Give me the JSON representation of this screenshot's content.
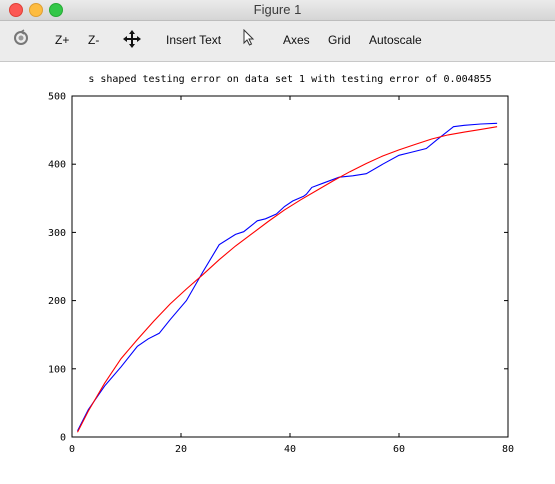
{
  "window": {
    "title": "Figure 1"
  },
  "toolbar": {
    "icons": [
      "rotate-icon",
      "move-icon",
      "pointer-icon"
    ],
    "zoom_in_label": "Z+",
    "zoom_out_label": "Z-",
    "insert_text_label": "Insert Text",
    "axes_label": "Axes",
    "grid_label": "Grid",
    "autoscale_label": "Autoscale"
  },
  "colors": {
    "blue_series": "#0000ff",
    "red_series": "#ff0000"
  },
  "chart_data": {
    "type": "line",
    "title": "s shaped testing error on data set 1 with testing error of 0.004855",
    "xlabel": "",
    "ylabel": "",
    "xlim": [
      0,
      80
    ],
    "ylim": [
      0,
      500
    ],
    "xticks": [
      0,
      20,
      40,
      60,
      80
    ],
    "yticks": [
      0,
      100,
      200,
      300,
      400,
      500
    ],
    "grid": false,
    "series": [
      {
        "color": "#0000ff",
        "x": [
          1,
          3,
          6,
          9,
          12,
          14,
          16,
          18,
          21,
          24,
          27,
          30,
          31.5,
          34,
          35.5,
          37.5,
          39,
          40.5,
          42.5,
          43,
          44,
          46,
          49,
          51.5,
          54,
          57,
          60,
          62,
          65,
          67,
          70,
          72,
          75,
          78
        ],
        "y": [
          9,
          40,
          75,
          103,
          133,
          144,
          152,
          172,
          200,
          242,
          282,
          297,
          301,
          317,
          320,
          327,
          338,
          346,
          353,
          356,
          366,
          372,
          381,
          383,
          386,
          400,
          413,
          417,
          423,
          436,
          455,
          457,
          459,
          460
        ]
      },
      {
        "color": "#ff0000",
        "x": [
          1,
          3,
          6,
          9,
          12,
          15,
          18,
          21,
          24,
          27,
          30,
          33,
          36,
          39,
          42,
          45,
          48,
          51,
          54,
          57,
          60,
          63,
          66,
          69,
          72,
          75,
          78
        ],
        "y": [
          7,
          38,
          79,
          115,
          143,
          170,
          195,
          217,
          238,
          260,
          280,
          298,
          316,
          333,
          348,
          362,
          376,
          389,
          401,
          412,
          421,
          429,
          437,
          443,
          447,
          451,
          455
        ]
      }
    ]
  }
}
